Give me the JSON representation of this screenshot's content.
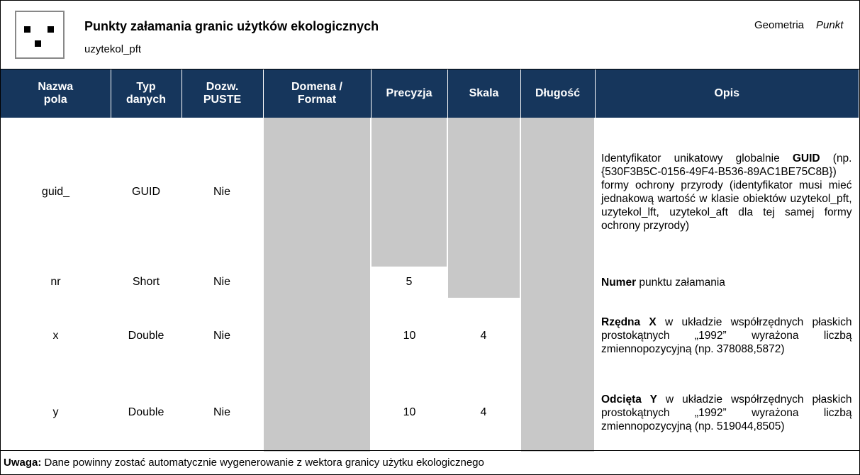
{
  "header": {
    "title": "Punkty załamania granic użytków ekologicznych",
    "subtitle": "uzytekol_pft",
    "geometry_label": "Geometria",
    "geometry_value": "Punkt"
  },
  "table": {
    "columns": [
      [
        "Nazwa",
        "pola"
      ],
      [
        "Typ",
        "danych"
      ],
      [
        "Dozw.",
        "PUSTE"
      ],
      [
        "Domena /",
        "Format"
      ],
      [
        "Precyzja"
      ],
      [
        "Skala"
      ],
      [
        "Długość"
      ],
      [
        "Opis"
      ]
    ],
    "rows": [
      [
        "guid_",
        "GUID",
        "Nie",
        null,
        null,
        null,
        null,
        [
          {
            "text": "Identyfikator unikatowy globalnie ",
            "bold": false
          },
          {
            "text": "GUID",
            "bold": true
          },
          {
            "text": " (np. {530F3B5C-0156-49F4-B536-89AC1BE75C8B}) formy ochrony przyrody (identyfikator musi mieć jednakową wartość w klasie obiektów uzytekol_pft, uzytekol_lft, uzytekol_aft dla tej samej formy ochrony przyrody)",
            "bold": false
          }
        ]
      ],
      [
        "nr",
        "Short",
        "Nie",
        null,
        "5",
        null,
        null,
        [
          {
            "text": "Numer",
            "bold": true
          },
          {
            "text": " punktu załamania",
            "bold": false
          }
        ]
      ],
      [
        "x",
        "Double",
        "Nie",
        null,
        "10",
        "4",
        null,
        [
          {
            "text": "Rzędna X",
            "bold": true
          },
          {
            "text": " w układzie współrzędnych płaskich prostokątnych „1992” wyrażona liczbą zmiennopozycyjną (np. 378088,5872)",
            "bold": false
          }
        ]
      ],
      [
        "y",
        "Double",
        "Nie",
        null,
        "10",
        "4",
        null,
        [
          {
            "text": "Odcięta Y",
            "bold": true
          },
          {
            "text": " w układzie współrzędnych płaskich prostokątnych „1992” wyrażona liczbą zmiennopozycyjną (np. 519044,8505)",
            "bold": false
          }
        ]
      ]
    ]
  },
  "footer": {
    "label": "Uwaga:",
    "text": " Dane powinny zostać automatycznie wygenerowanie z wektora granicy użytku ekologicznego"
  }
}
